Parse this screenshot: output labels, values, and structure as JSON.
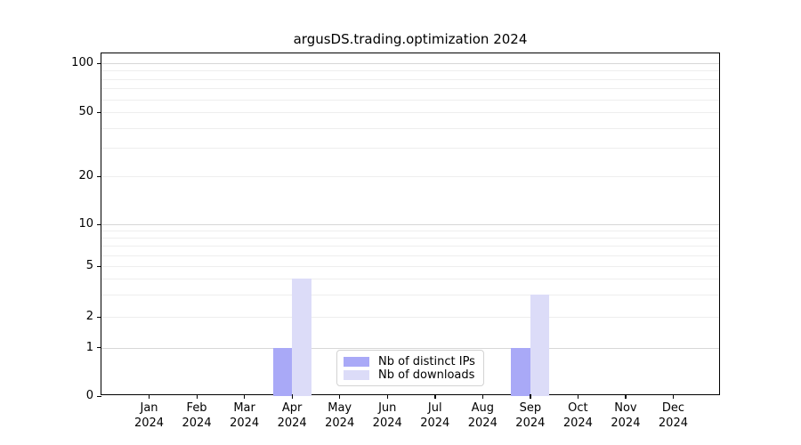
{
  "chart_data": {
    "type": "bar",
    "title": "argusDS.trading.optimization 2024",
    "categories": [
      "Jan",
      "Feb",
      "Mar",
      "Apr",
      "May",
      "Jun",
      "Jul",
      "Aug",
      "Sep",
      "Oct",
      "Nov",
      "Dec"
    ],
    "category_year": "2024",
    "series": [
      {
        "name": "Nb of distinct IPs",
        "color": "#a9a9f7",
        "values": [
          0,
          0,
          0,
          1,
          0,
          0,
          0,
          0,
          1,
          0,
          0,
          0
        ]
      },
      {
        "name": "Nb of downloads",
        "color": "#dcdcf8",
        "values": [
          0,
          0,
          0,
          4,
          0,
          0,
          0,
          0,
          3,
          0,
          0,
          0
        ]
      }
    ],
    "yscale": "log above 1, linear from 0 to 1",
    "yticks": [
      0,
      1,
      2,
      5,
      10,
      20,
      50,
      100
    ],
    "ylim": [
      0,
      115
    ],
    "grid": {
      "major_values": [
        1,
        10,
        100
      ],
      "minor_values": [
        2,
        3,
        4,
        5,
        6,
        7,
        8,
        9,
        20,
        30,
        40,
        50,
        60,
        70,
        80,
        90
      ]
    },
    "legend_position": "lower center-right inside plot"
  },
  "colors": {
    "background": "#ffffff",
    "axis": "#000000",
    "text": "#000000",
    "grid_major": "#d7d7d7",
    "grid_minor": "#eeeeee",
    "legend_border": "#d3d3d3"
  }
}
